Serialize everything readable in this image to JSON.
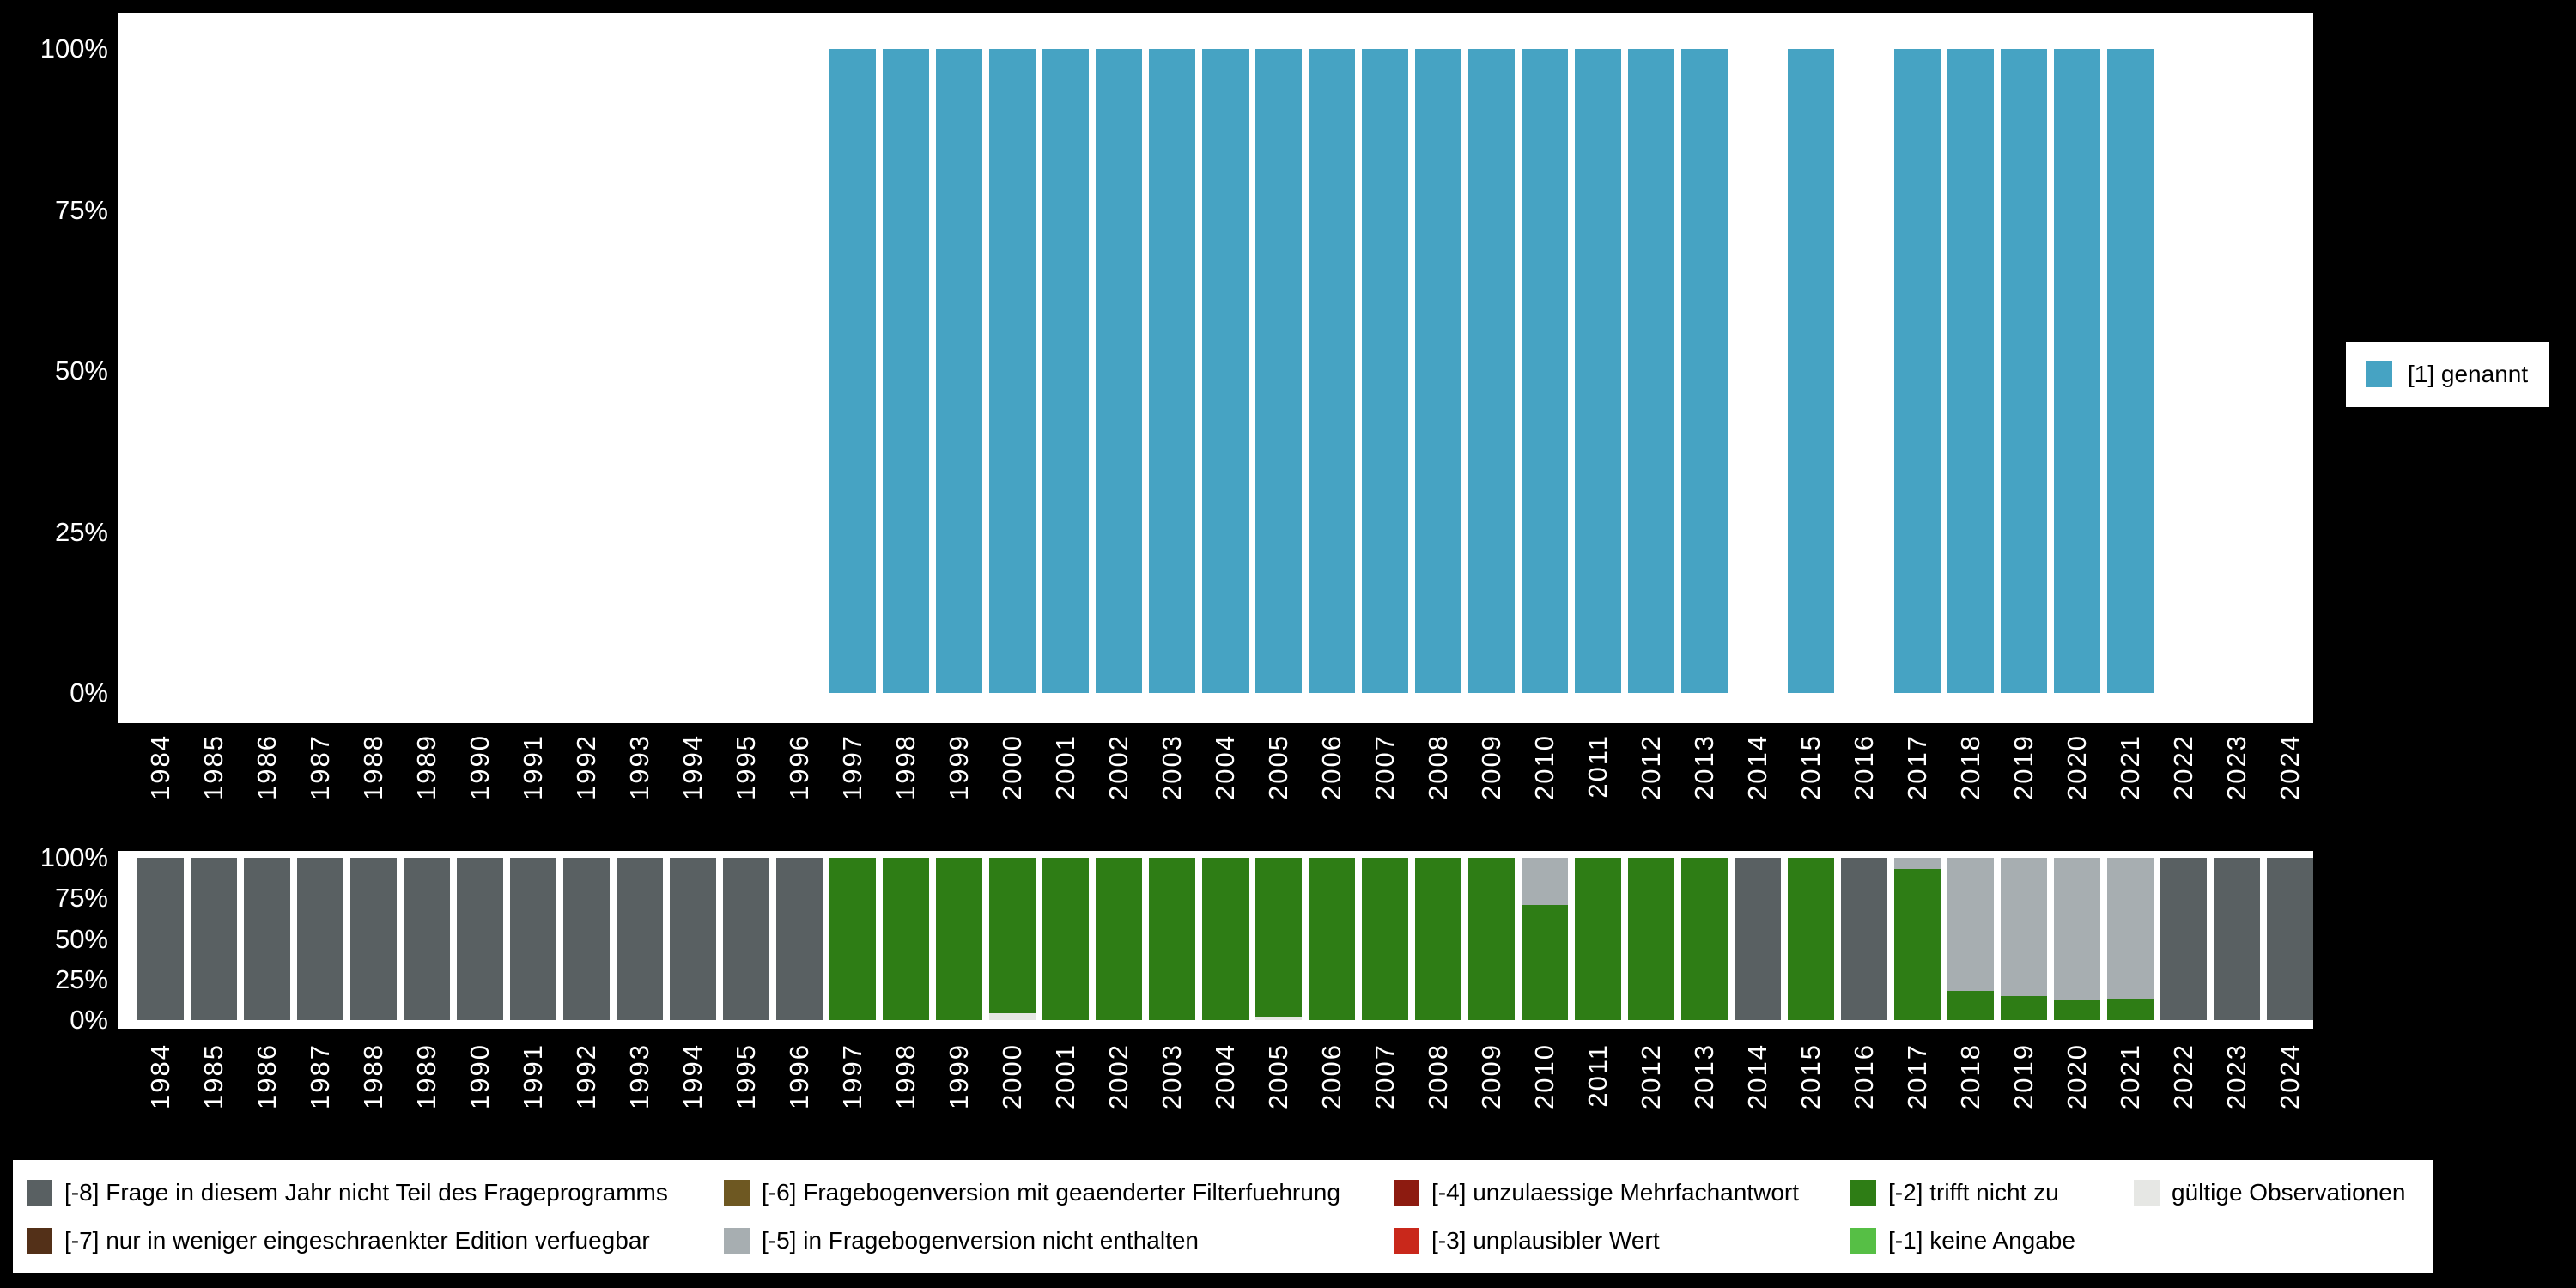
{
  "colors": {
    "background": "#000000",
    "panel": "#ffffff",
    "tick_text": "#ffffff",
    "legend_text": "#000000",
    "genannt": "#46a3c3",
    "m8": "#596062",
    "m7": "#533018",
    "m6": "#6e5822",
    "m5": "#a7aeb1",
    "m4": "#8d1b10",
    "m3": "#c9281b",
    "m2": "#2e7d15",
    "m1": "#56bf45",
    "valid": "#e6e7e4"
  },
  "axes": {
    "y_ticks": [
      "100%",
      "75%",
      "50%",
      "25%",
      "0%"
    ]
  },
  "bottom_legend": {
    "items": [
      {
        "label": "[-8] Frage in diesem Jahr nicht Teil des Frageprogramms",
        "color_key": "m8"
      },
      {
        "label": "[-6] Fragebogenversion mit geaenderter Filterfuehrung",
        "color_key": "m6"
      },
      {
        "label": "[-4] unzulaessige Mehrfachantwort",
        "color_key": "m4"
      },
      {
        "label": "[-2] trifft nicht zu",
        "color_key": "m2"
      },
      {
        "label": "gültige Observationen",
        "color_key": "valid"
      },
      {
        "label": "[-7] nur in weniger eingeschraenkter Edition verfuegbar",
        "color_key": "m7"
      },
      {
        "label": "[-5] in Fragebogenversion nicht enthalten",
        "color_key": "m5"
      },
      {
        "label": "[-3] unplausibler Wert",
        "color_key": "m3"
      },
      {
        "label": "[-1] keine Angabe",
        "color_key": "m1"
      }
    ]
  },
  "chart_data": [
    {
      "type": "bar",
      "title": "",
      "xlabel": "",
      "ylabel": "",
      "unit": "percent",
      "ylim": [
        0,
        100
      ],
      "y_tick_labels": [
        "0%",
        "25%",
        "50%",
        "75%",
        "100%"
      ],
      "legend_position": "right",
      "categories": [
        "1984",
        "1985",
        "1986",
        "1987",
        "1988",
        "1989",
        "1990",
        "1991",
        "1992",
        "1993",
        "1994",
        "1995",
        "1996",
        "1997",
        "1998",
        "1999",
        "2000",
        "2001",
        "2002",
        "2003",
        "2004",
        "2005",
        "2006",
        "2007",
        "2008",
        "2009",
        "2010",
        "2011",
        "2012",
        "2013",
        "2014",
        "2015",
        "2016",
        "2017",
        "2018",
        "2019",
        "2020",
        "2021",
        "2022",
        "2023",
        "2024"
      ],
      "series": [
        {
          "name": "[1] genannt",
          "color_key": "genannt",
          "values": [
            0,
            0,
            0,
            0,
            0,
            0,
            0,
            0,
            0,
            0,
            0,
            0,
            0,
            100,
            100,
            100,
            100,
            100,
            100,
            100,
            100,
            100,
            100,
            100,
            100,
            100,
            100,
            100,
            100,
            100,
            0,
            100,
            0,
            100,
            100,
            100,
            100,
            100,
            0,
            0,
            0
          ]
        }
      ]
    },
    {
      "type": "stacked-bar",
      "title": "",
      "xlabel": "",
      "ylabel": "",
      "unit": "percent",
      "ylim": [
        0,
        100
      ],
      "y_tick_labels": [
        "0%",
        "25%",
        "50%",
        "75%",
        "100%"
      ],
      "legend_position": "bottom",
      "categories": [
        "1984",
        "1985",
        "1986",
        "1987",
        "1988",
        "1989",
        "1990",
        "1991",
        "1992",
        "1993",
        "1994",
        "1995",
        "1996",
        "1997",
        "1998",
        "1999",
        "2000",
        "2001",
        "2002",
        "2003",
        "2004",
        "2005",
        "2006",
        "2007",
        "2008",
        "2009",
        "2010",
        "2011",
        "2012",
        "2013",
        "2014",
        "2015",
        "2016",
        "2017",
        "2018",
        "2019",
        "2020",
        "2021",
        "2022",
        "2023",
        "2024"
      ],
      "stacks": [
        [
          [
            "m8",
            100
          ]
        ],
        [
          [
            "m8",
            100
          ]
        ],
        [
          [
            "m8",
            100
          ]
        ],
        [
          [
            "m8",
            100
          ]
        ],
        [
          [
            "m8",
            100
          ]
        ],
        [
          [
            "m8",
            100
          ]
        ],
        [
          [
            "m8",
            100
          ]
        ],
        [
          [
            "m8",
            100
          ]
        ],
        [
          [
            "m8",
            100
          ]
        ],
        [
          [
            "m8",
            100
          ]
        ],
        [
          [
            "m8",
            100
          ]
        ],
        [
          [
            "m8",
            100
          ]
        ],
        [
          [
            "m8",
            100
          ]
        ],
        [
          [
            "m2",
            100
          ]
        ],
        [
          [
            "m2",
            100
          ]
        ],
        [
          [
            "m2",
            100
          ]
        ],
        [
          [
            "valid",
            4
          ],
          [
            "m2",
            96
          ]
        ],
        [
          [
            "m2",
            100
          ]
        ],
        [
          [
            "m2",
            100
          ]
        ],
        [
          [
            "m2",
            100
          ]
        ],
        [
          [
            "m2",
            100
          ]
        ],
        [
          [
            "valid",
            2
          ],
          [
            "m2",
            98
          ]
        ],
        [
          [
            "m2",
            100
          ]
        ],
        [
          [
            "m2",
            100
          ]
        ],
        [
          [
            "m2",
            100
          ]
        ],
        [
          [
            "m2",
            100
          ]
        ],
        [
          [
            "m2",
            71
          ],
          [
            "m5",
            29
          ]
        ],
        [
          [
            "m2",
            100
          ]
        ],
        [
          [
            "m2",
            100
          ]
        ],
        [
          [
            "m2",
            100
          ]
        ],
        [
          [
            "m8",
            100
          ]
        ],
        [
          [
            "m2",
            100
          ]
        ],
        [
          [
            "m8",
            100
          ]
        ],
        [
          [
            "m2",
            93
          ],
          [
            "m5",
            7
          ]
        ],
        [
          [
            "m2",
            18
          ],
          [
            "m5",
            82
          ]
        ],
        [
          [
            "m2",
            15
          ],
          [
            "m5",
            85
          ]
        ],
        [
          [
            "m2",
            12
          ],
          [
            "m5",
            88
          ]
        ],
        [
          [
            "m2",
            13
          ],
          [
            "m5",
            87
          ]
        ],
        [
          [
            "m8",
            100
          ]
        ],
        [
          [
            "m8",
            100
          ]
        ],
        [
          [
            "m8",
            100
          ]
        ]
      ]
    }
  ]
}
